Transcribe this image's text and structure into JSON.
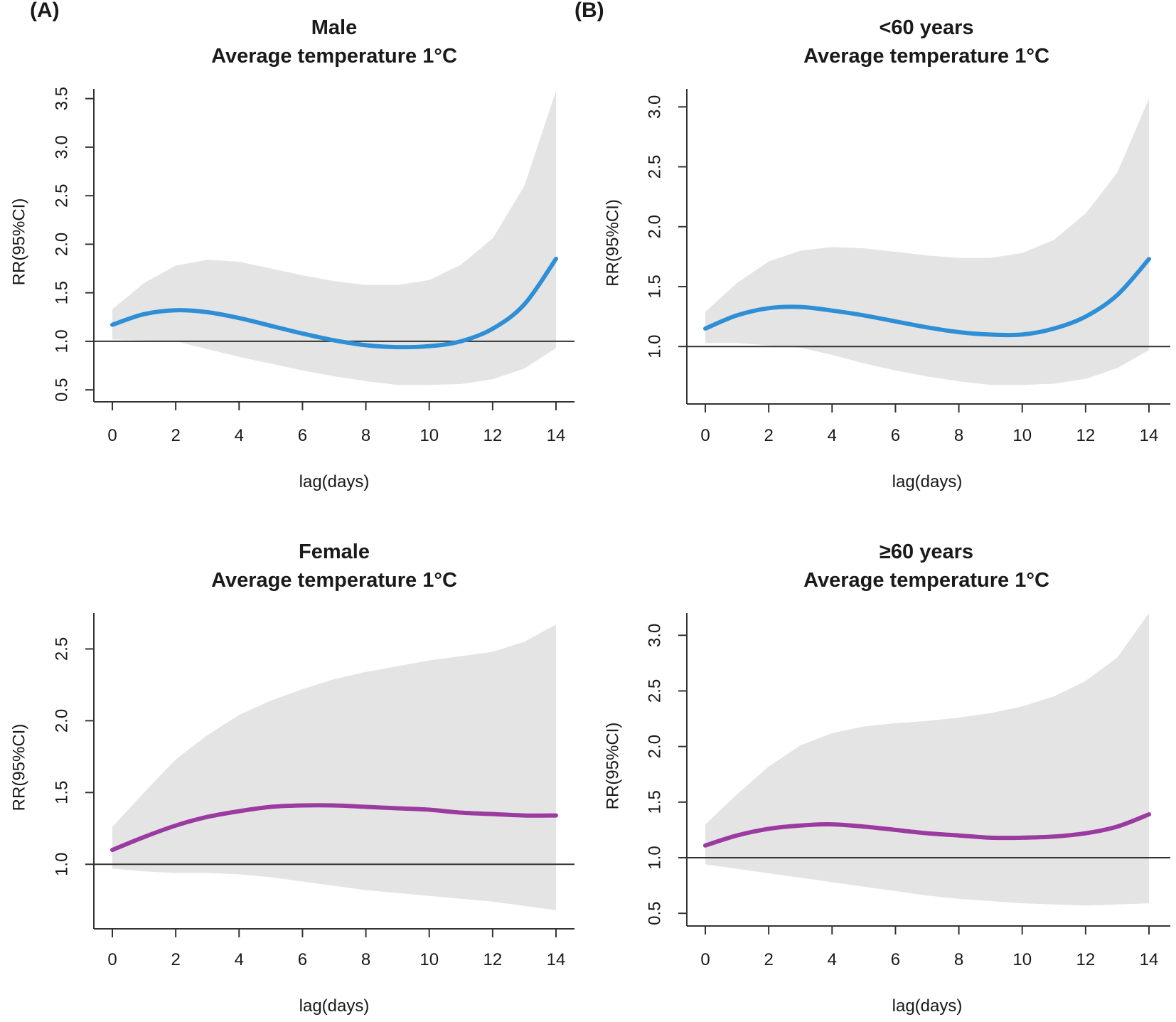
{
  "figure": {
    "label_a": "(A)",
    "label_b": "(B)"
  },
  "chart_data": [
    {
      "type": "line",
      "title_line1": "Male",
      "title_line2": "Average temperature 1°C",
      "xlabel": "lag(days)",
      "ylabel": "RR(95%CI)",
      "xlim": [
        0,
        14
      ],
      "ylim": [
        0.45,
        3.6
      ],
      "xticks": [
        "0",
        "2",
        "4",
        "6",
        "8",
        "10",
        "12",
        "14"
      ],
      "yticks": [
        "0.5",
        "1.0",
        "1.5",
        "2.0",
        "2.5",
        "3.0",
        "3.5"
      ],
      "reference_line": 1.0,
      "color": "#2e8fd6",
      "x": [
        0,
        1,
        2,
        3,
        4,
        5,
        6,
        7,
        8,
        9,
        10,
        11,
        12,
        13,
        14
      ],
      "rr": [
        1.17,
        1.28,
        1.32,
        1.3,
        1.24,
        1.16,
        1.08,
        1.01,
        0.96,
        0.94,
        0.95,
        1.0,
        1.13,
        1.38,
        1.85
      ],
      "lower": [
        1.02,
        1.01,
        1.0,
        0.92,
        0.84,
        0.77,
        0.7,
        0.64,
        0.59,
        0.55,
        0.55,
        0.56,
        0.61,
        0.72,
        0.93
      ],
      "upper": [
        1.33,
        1.6,
        1.78,
        1.84,
        1.82,
        1.75,
        1.68,
        1.62,
        1.58,
        1.58,
        1.63,
        1.79,
        2.06,
        2.6,
        3.58
      ]
    },
    {
      "type": "line",
      "title_line1": "<60 years",
      "title_line2": "Average temperature 1°C",
      "xlabel": "lag(days)",
      "ylabel": "RR(95%CI)",
      "xlim": [
        0,
        14
      ],
      "ylim": [
        0.58,
        3.15
      ],
      "xticks": [
        "0",
        "2",
        "4",
        "6",
        "8",
        "10",
        "12",
        "14"
      ],
      "yticks": [
        "1.0",
        "1.5",
        "2.0",
        "2.5",
        "3.0"
      ],
      "reference_line": 1.0,
      "color": "#2e8fd6",
      "x": [
        0,
        1,
        2,
        3,
        4,
        5,
        6,
        7,
        8,
        9,
        10,
        11,
        12,
        13,
        14
      ],
      "rr": [
        1.15,
        1.26,
        1.32,
        1.33,
        1.3,
        1.26,
        1.21,
        1.16,
        1.12,
        1.1,
        1.1,
        1.15,
        1.25,
        1.43,
        1.73
      ],
      "lower": [
        1.03,
        1.03,
        1.01,
        0.99,
        0.93,
        0.86,
        0.8,
        0.75,
        0.71,
        0.68,
        0.68,
        0.69,
        0.73,
        0.82,
        0.97
      ],
      "upper": [
        1.29,
        1.53,
        1.71,
        1.8,
        1.83,
        1.82,
        1.79,
        1.76,
        1.74,
        1.74,
        1.78,
        1.89,
        2.11,
        2.45,
        3.07
      ]
    },
    {
      "type": "line",
      "title_line1": "Female",
      "title_line2": "Average temperature 1°C",
      "xlabel": "lag(days)",
      "ylabel": "RR(95%CI)",
      "xlim": [
        0,
        14
      ],
      "ylim": [
        0.6,
        2.75
      ],
      "xticks": [
        "0",
        "2",
        "4",
        "6",
        "8",
        "10",
        "12",
        "14"
      ],
      "yticks": [
        "1.0",
        "1.5",
        "2.0",
        "2.5"
      ],
      "reference_line": 1.0,
      "color": "#9b3aa0",
      "x": [
        0,
        1,
        2,
        3,
        4,
        5,
        6,
        7,
        8,
        9,
        10,
        11,
        12,
        13,
        14
      ],
      "rr": [
        1.1,
        1.19,
        1.27,
        1.33,
        1.37,
        1.4,
        1.41,
        1.41,
        1.4,
        1.39,
        1.38,
        1.36,
        1.35,
        1.34,
        1.34
      ],
      "lower": [
        0.97,
        0.95,
        0.94,
        0.94,
        0.93,
        0.91,
        0.88,
        0.85,
        0.82,
        0.8,
        0.78,
        0.76,
        0.74,
        0.71,
        0.68
      ],
      "upper": [
        1.26,
        1.5,
        1.73,
        1.9,
        2.04,
        2.14,
        2.22,
        2.29,
        2.34,
        2.38,
        2.42,
        2.45,
        2.48,
        2.55,
        2.67
      ]
    },
    {
      "type": "line",
      "title_line1": "≥60 years",
      "title_line2": "Average temperature 1°C",
      "xlabel": "lag(days)",
      "ylabel": "RR(95%CI)",
      "xlim": [
        0,
        14
      ],
      "ylim": [
        0.45,
        3.2
      ],
      "xticks": [
        "0",
        "2",
        "4",
        "6",
        "8",
        "10",
        "12",
        "14"
      ],
      "yticks": [
        "0.5",
        "1.0",
        "1.5",
        "2.0",
        "2.5",
        "3.0"
      ],
      "reference_line": 1.0,
      "color": "#9b3aa0",
      "x": [
        0,
        1,
        2,
        3,
        4,
        5,
        6,
        7,
        8,
        9,
        10,
        11,
        12,
        13,
        14
      ],
      "rr": [
        1.11,
        1.2,
        1.26,
        1.29,
        1.3,
        1.28,
        1.25,
        1.22,
        1.2,
        1.18,
        1.18,
        1.19,
        1.22,
        1.28,
        1.39
      ],
      "lower": [
        0.94,
        0.9,
        0.86,
        0.82,
        0.78,
        0.74,
        0.7,
        0.66,
        0.63,
        0.61,
        0.59,
        0.58,
        0.57,
        0.58,
        0.59
      ],
      "upper": [
        1.3,
        1.57,
        1.82,
        2.01,
        2.12,
        2.18,
        2.21,
        2.23,
        2.26,
        2.3,
        2.36,
        2.45,
        2.59,
        2.8,
        3.2
      ]
    }
  ]
}
